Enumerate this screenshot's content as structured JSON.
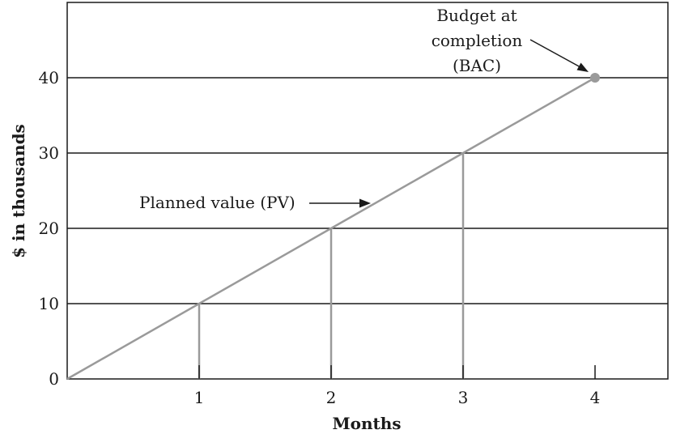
{
  "chart_data": {
    "type": "line",
    "xlabel": "Months",
    "ylabel": "$ in thousands",
    "xlim": [
      0,
      4.45
    ],
    "ylim": [
      0,
      40
    ],
    "x_ticks": [
      1,
      2,
      3,
      4
    ],
    "y_ticks": [
      0,
      10,
      20,
      30,
      40
    ],
    "grid": "horizontal",
    "series": [
      {
        "x": [
          0,
          1,
          2,
          3,
          4
        ],
        "y": [
          0,
          10,
          20,
          30,
          40
        ]
      }
    ],
    "drop_lines_at": [
      1,
      2,
      3
    ],
    "end_point": {
      "x": 4,
      "y": 40
    },
    "annotations": {
      "pv": "Planned value (PV)",
      "bac_lines": [
        "Budget at",
        "completion",
        "(BAC)"
      ]
    },
    "colors": {
      "line": "#9a9a9a",
      "marker": "#9a9a9a",
      "grid": "#1a1a1a",
      "frame": "#1a1a1a"
    }
  }
}
